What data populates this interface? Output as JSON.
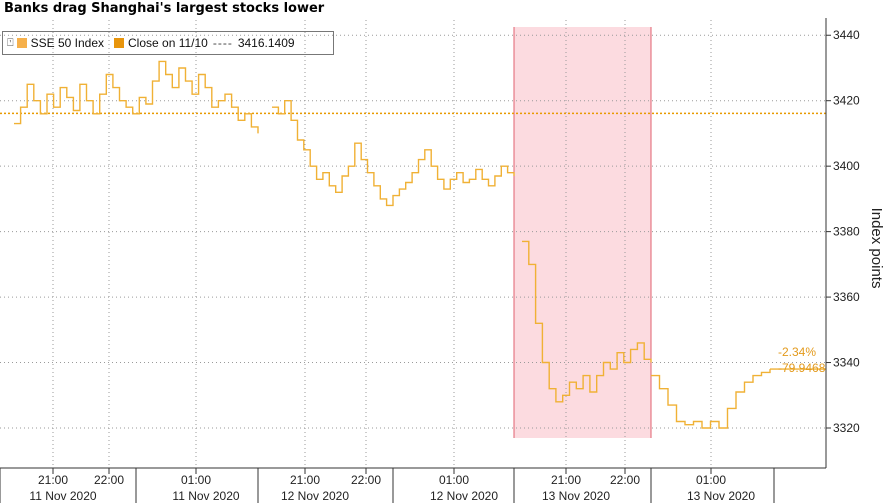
{
  "title": "Banks drag Shanghai's largest stocks lower",
  "legend": {
    "series_label": "SSE 50 Index",
    "close_label": "Close on 11/10",
    "close_value": "3416.1409"
  },
  "annotations": {
    "pct_change": "-2.34%",
    "abs_change": "-79.9468"
  },
  "colors": {
    "line": "#F0B135",
    "close_line": "#E89A00",
    "swatch_series": "#F6B04A",
    "swatch_close": "#E8950C",
    "shade": "#FBD5DA",
    "shade_border": "#E0606F",
    "grid": "#9A9A9A"
  },
  "chart_data": {
    "type": "line",
    "title": "Banks drag Shanghai's largest stocks lower",
    "ylabel": "Index points",
    "ylim": [
      3310,
      3443
    ],
    "yticks": [
      3320,
      3340,
      3360,
      3380,
      3400,
      3420,
      3440
    ],
    "x_tick_labels": [
      {
        "time": "21:00",
        "date": "11 Nov 2020"
      },
      {
        "time": "22:00",
        "date": ""
      },
      {
        "time": "01:00",
        "date": "11 Nov 2020"
      },
      {
        "time": "21:00",
        "date": "12 Nov 2020"
      },
      {
        "time": "22:00",
        "date": ""
      },
      {
        "time": "01:00",
        "date": "12 Nov 2020"
      },
      {
        "time": "21:00",
        "date": "13 Nov 2020"
      },
      {
        "time": "22:00",
        "date": ""
      },
      {
        "time": "01:00",
        "date": "13 Nov 2020"
      }
    ],
    "reference_line": {
      "name": "Close on 11/10",
      "value": 3416.1409
    },
    "series": [
      {
        "name": "SSE 50 Index",
        "segments": [
          [
            3413,
            3418,
            3425,
            3420,
            3416,
            3422,
            3418,
            3424,
            3421,
            3417,
            3425,
            3420,
            3416,
            3422,
            3428,
            3424,
            3420,
            3418,
            3416,
            3421,
            3419,
            3426,
            3432,
            3428,
            3424,
            3430,
            3426,
            3422,
            3428,
            3424,
            3418,
            3420,
            3422,
            3418,
            3414,
            3416,
            3412,
            3410
          ],
          [
            3418,
            3416,
            3420,
            3414,
            3408,
            3405,
            3400,
            3396,
            3398,
            3394,
            3392,
            3397,
            3400,
            3407,
            3402,
            3398,
            3394,
            3390,
            3388,
            3391,
            3393,
            3395,
            3398,
            3402,
            3405,
            3400,
            3396,
            3393,
            3396,
            3398,
            3395,
            3396,
            3399,
            3396,
            3394,
            3397,
            3400,
            3398,
            3397
          ],
          [
            3377,
            3370,
            3352,
            3340,
            3332,
            3328,
            3330,
            3334,
            3332,
            3336,
            3331,
            3336,
            3340,
            3338,
            3343,
            3340,
            3344,
            3346,
            3341,
            3340
          ],
          [
            3336,
            3332,
            3327,
            3322,
            3321,
            3322,
            3320,
            3322,
            3320,
            3326,
            3331,
            3334,
            3336,
            3337,
            3338
          ]
        ]
      }
    ],
    "grid": true,
    "legend_position": "top-left"
  }
}
